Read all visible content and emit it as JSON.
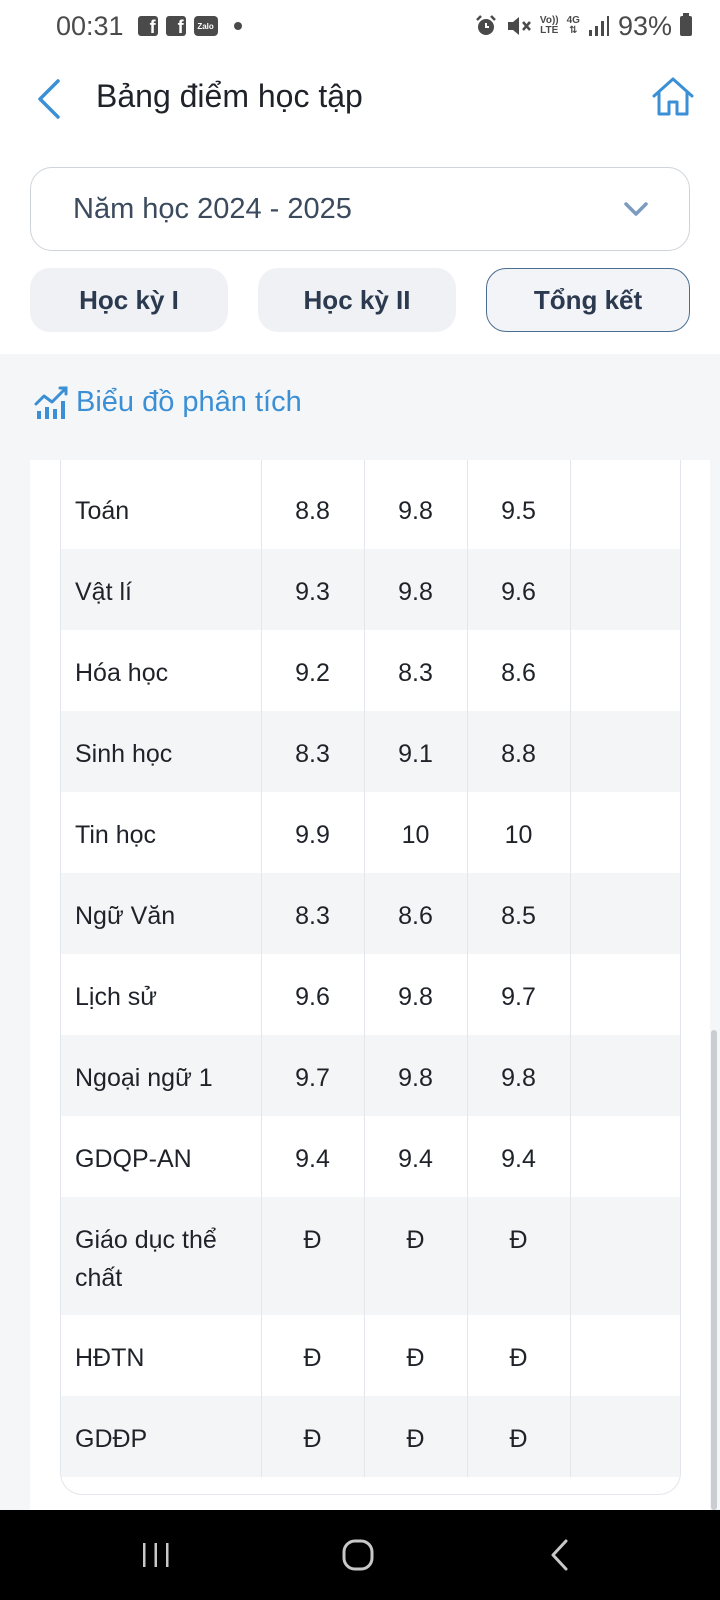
{
  "status_bar": {
    "time": "00:31",
    "fb_letter": "f",
    "zalo_label": "Zalo",
    "volte_top": "Vo))",
    "volte_bottom": "LTE",
    "network": "4G",
    "battery": "93%"
  },
  "header": {
    "title": "Bảng điểm học tập"
  },
  "year_select": {
    "selected": "Năm học 2024 - 2025"
  },
  "tabs": [
    {
      "label": "Học kỳ I"
    },
    {
      "label": "Học kỳ II"
    },
    {
      "label": "Tổng kết"
    }
  ],
  "analysis": {
    "label": "Biểu đồ phân tích"
  },
  "grades": [
    {
      "subject": "Toán",
      "hk1": "8.8",
      "hk2": "9.8",
      "cn": "9.5"
    },
    {
      "subject": "Vật lí",
      "hk1": "9.3",
      "hk2": "9.8",
      "cn": "9.6"
    },
    {
      "subject": "Hóa học",
      "hk1": "9.2",
      "hk2": "8.3",
      "cn": "8.6"
    },
    {
      "subject": "Sinh học",
      "hk1": "8.3",
      "hk2": "9.1",
      "cn": "8.8"
    },
    {
      "subject": "Tin học",
      "hk1": "9.9",
      "hk2": "10",
      "cn": "10"
    },
    {
      "subject": "Ngữ Văn",
      "hk1": "8.3",
      "hk2": "8.6",
      "cn": "8.5"
    },
    {
      "subject": "Lịch sử",
      "hk1": "9.6",
      "hk2": "9.8",
      "cn": "9.7"
    },
    {
      "subject": "Ngoại ngữ 1",
      "hk1": "9.7",
      "hk2": "9.8",
      "cn": "9.8"
    },
    {
      "subject": "GDQP-AN",
      "hk1": "9.4",
      "hk2": "9.4",
      "cn": "9.4"
    },
    {
      "subject": "Giáo dục thể chất",
      "hk1": "Đ",
      "hk2": "Đ",
      "cn": "Đ"
    },
    {
      "subject": "HĐTN",
      "hk1": "Đ",
      "hk2": "Đ",
      "cn": "Đ"
    },
    {
      "subject": "GDĐP",
      "hk1": "Đ",
      "hk2": "Đ",
      "cn": "Đ"
    }
  ],
  "colors": {
    "accent_blue": "#3b8fd5",
    "active_tab_border": "#4a6d94",
    "stripe": "#f4f5f7"
  }
}
